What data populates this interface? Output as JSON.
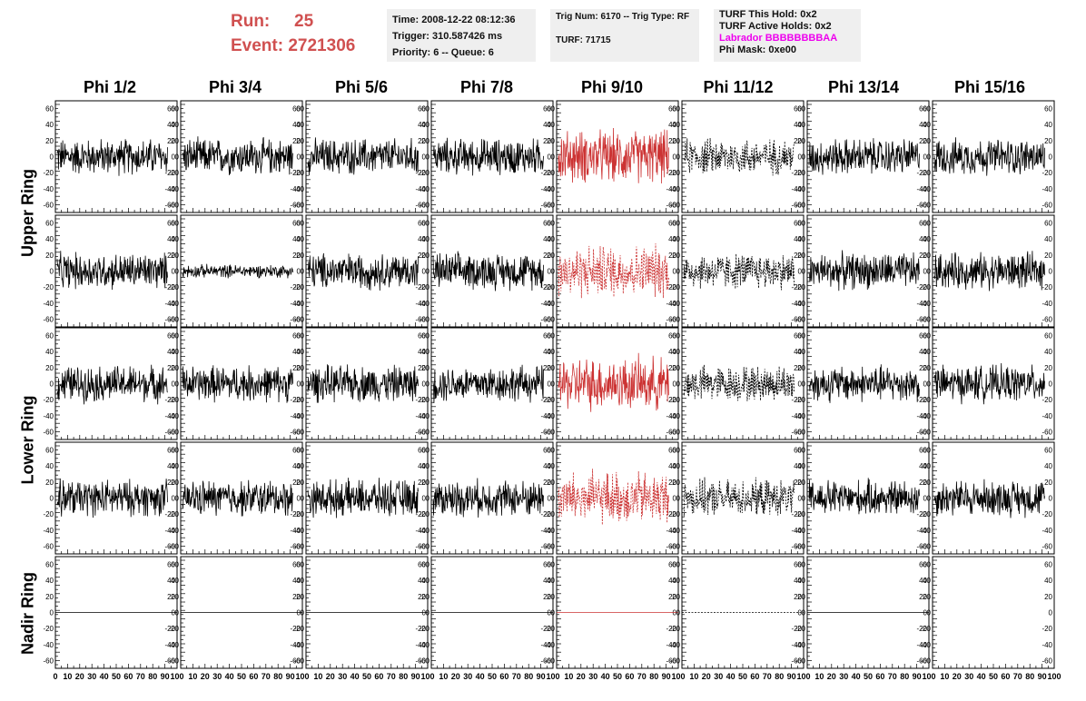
{
  "header": {
    "run_label": "Run:",
    "run_value": "25",
    "event_label": "Event:",
    "event_value": "2721306"
  },
  "time_box": {
    "time": "Time: 2008-12-22 08:12:36",
    "trigger": "Trigger: 310.587426 ms",
    "priority": "Priority: 6 -- Queue: 6"
  },
  "trig_box": {
    "trig": "Trig Num: 6170 -- Trig Type: RF",
    "turf": "TURF: 71715"
  },
  "turf_box": {
    "this_hold": "TURF This Hold: 0x2",
    "active_holds": "TURF Active Holds: 0x2",
    "labrador": "Labrador BBBBBBBBAA",
    "phi_mask": "Phi Mask: 0xe00"
  },
  "columns": [
    "Phi 1/2",
    "Phi 3/4",
    "Phi 5/6",
    "Phi 7/8",
    "Phi 9/10",
    "Phi 11/12",
    "Phi 13/14",
    "Phi 15/16"
  ],
  "rings": [
    {
      "label": "Upper Ring"
    },
    {
      "label": "Lower Ring"
    },
    {
      "label": "Nadir Ring"
    }
  ],
  "y_ticks": [
    "60",
    "40",
    "20",
    "0",
    "-20",
    "-40",
    "-60"
  ],
  "x_tick_row_labels": [
    "0 10 20 30 40 50 60 70 80 90 100",
    "10 20 30 40 50 60 70 80 90 100",
    "10 20 30 40 50 60 70 80 90 100",
    "10 20 30 40 50 60 70 80 90 100",
    "10 20 30 40 50 60 70 80 90 100",
    "10 20 30 40 50 60 70 80 90 100",
    "10 20 30 40 50 60 70 80 90 100",
    "10 20 30 40 50 60 70 80 90 100"
  ],
  "colors": {
    "accent_red": "#d05050",
    "trace_black": "#000000",
    "trace_red": "#cc3333",
    "magenta": "#ee00ee",
    "info_bg": "#efefef"
  },
  "trace_styles": {
    "phi_9_10": "red",
    "phi_11_12": "dashed",
    "phi_9_10_rows_2_4": "dashed-red"
  },
  "chart_data": {
    "type": "line",
    "ylim": [
      -65,
      65
    ],
    "xlim": [
      0,
      100
    ],
    "panels_rows": 5,
    "panels_cols": 8
  }
}
